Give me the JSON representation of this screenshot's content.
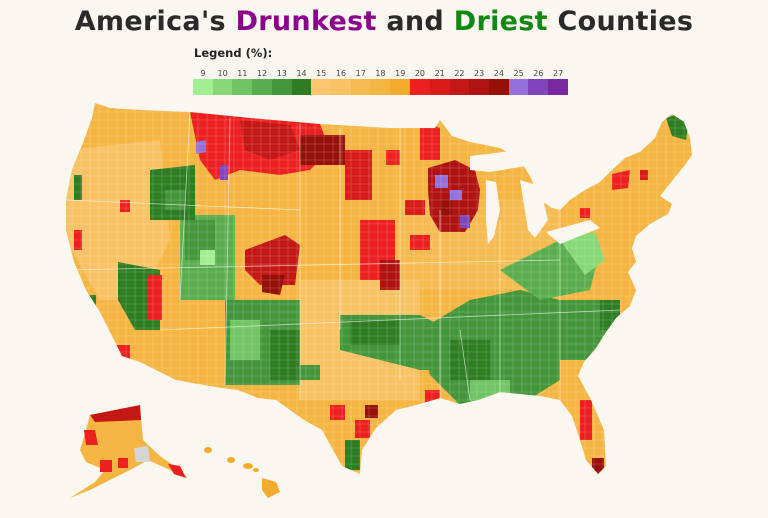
{
  "title": {
    "part1": "America's ",
    "drunkest": "Drunkest",
    "part2": " and ",
    "driest": "Driest",
    "part3": " Counties",
    "colors": {
      "text": "#2a2a2a",
      "drunkest": "#8b008b",
      "driest": "#118811"
    }
  },
  "legend": {
    "title": "Legend (%):",
    "buckets": [
      {
        "label": "9",
        "color": "#a3ee94"
      },
      {
        "label": "10",
        "color": "#88d878"
      },
      {
        "label": "11",
        "color": "#70c463"
      },
      {
        "label": "12",
        "color": "#5aad4f"
      },
      {
        "label": "13",
        "color": "#44963b"
      },
      {
        "label": "14",
        "color": "#2e7d22"
      },
      {
        "label": "15",
        "color": "#fbc66f"
      },
      {
        "label": "16",
        "color": "#f8c265"
      },
      {
        "label": "17",
        "color": "#f6bb50"
      },
      {
        "label": "18",
        "color": "#f5b542"
      },
      {
        "label": "19",
        "color": "#f2ab2c"
      },
      {
        "label": "20",
        "color": "#ec2020"
      },
      {
        "label": "21",
        "color": "#d91c18"
      },
      {
        "label": "22",
        "color": "#c41816"
      },
      {
        "label": "23",
        "color": "#b01412"
      },
      {
        "label": "24",
        "color": "#961008"
      },
      {
        "label": "25",
        "color": "#9470dc"
      },
      {
        "label": "26",
        "color": "#8044bc"
      },
      {
        "label": "27",
        "color": "#7a28a0"
      }
    ]
  },
  "map": {
    "description": "US county choropleth of excessive drinking percentage",
    "background": "#faf7f0",
    "no_data_color": "#d5d5d5",
    "regions": {
      "northern_plains_montana": "high (20-24%)",
      "wisconsin": "highest (23-27%)",
      "utah": "low (9-13%)",
      "south_east_appalachia": "low (10-14%)",
      "rest": "moderate (15-19%)"
    }
  }
}
